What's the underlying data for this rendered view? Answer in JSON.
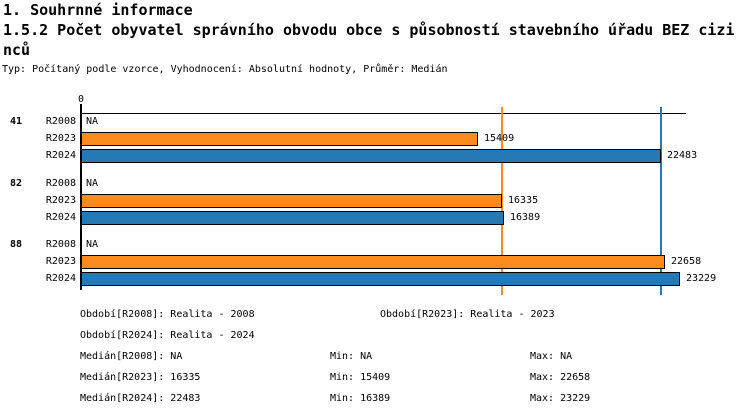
{
  "header": {
    "title1": "1. Souhrnné informace",
    "title2": "1.5.2 Počet obyvatel správního obvodu obce s působností stavebního úřadu BEZ cizinců",
    "subtitle": "Typ: Počítaný podle vzorce, Vyhodnocení: Absolutní hodnoty, Průměr: Medián"
  },
  "chart_data": {
    "type": "bar",
    "orientation": "horizontal",
    "x_axis": {
      "zero_label": "0",
      "min": 0
    },
    "na_text": "NA",
    "series_order": [
      "R2008",
      "R2023",
      "R2024"
    ],
    "series_colors": {
      "R2008": null,
      "R2023": "#fb8b1e",
      "R2024": "#2579b5"
    },
    "series_meaning": {
      "R2008": "Realita - 2008",
      "R2023": "Realita - 2023",
      "R2024": "Realita - 2024"
    },
    "groups": [
      {
        "label": "41",
        "values": {
          "R2008": null,
          "R2023": 15409,
          "R2024": 22483
        }
      },
      {
        "label": "82",
        "values": {
          "R2008": null,
          "R2023": 16335,
          "R2024": 16389
        }
      },
      {
        "label": "88",
        "values": {
          "R2008": null,
          "R2023": 22658,
          "R2024": 23229
        }
      }
    ],
    "reference_lines": [
      {
        "key": "median-r2023",
        "value": 16335,
        "color": "#fb8b1e"
      },
      {
        "key": "median-r2024",
        "value": 22483,
        "color": "#2579b5"
      }
    ],
    "stats": {
      "median": {
        "R2008": "NA",
        "R2023": 16335,
        "R2024": 22483
      },
      "min": {
        "R2008": "NA",
        "R2023": 15409,
        "R2024": 16389
      },
      "max": {
        "R2008": "NA",
        "R2023": 22658,
        "R2024": 23229
      }
    }
  },
  "legend": {
    "rows": [
      {
        "items": [
          {
            "key": "obdobi-r2008",
            "col": "main",
            "text": "Období[R2008]: Realita - 2008"
          },
          {
            "key": "obdobi-r2023",
            "col": "period2",
            "text": "Období[R2023]: Realita - 2023"
          }
        ]
      },
      {
        "items": [
          {
            "key": "obdobi-r2024",
            "col": "main",
            "text": "Období[R2024]: Realita - 2024"
          }
        ]
      },
      {
        "items": [
          {
            "key": "median-r2008",
            "col": "main",
            "text": "Medián[R2008]: NA"
          },
          {
            "key": "min-r2008",
            "col": "min",
            "text": "Min: NA"
          },
          {
            "key": "max-r2008",
            "col": "max",
            "text": "Max: NA"
          }
        ]
      },
      {
        "items": [
          {
            "key": "median-r2023",
            "col": "main",
            "text": "Medián[R2023]: 16335"
          },
          {
            "key": "min-r2023",
            "col": "min",
            "text": "Min: 15409"
          },
          {
            "key": "max-r2023",
            "col": "max",
            "text": "Max: 22658"
          }
        ]
      },
      {
        "items": [
          {
            "key": "median-r2024",
            "col": "main",
            "text": "Medián[R2024]: 22483"
          },
          {
            "key": "min-r2024",
            "col": "min",
            "text": "Min: 16389"
          },
          {
            "key": "max-r2024",
            "col": "max",
            "text": "Max: 23229"
          }
        ]
      }
    ]
  }
}
